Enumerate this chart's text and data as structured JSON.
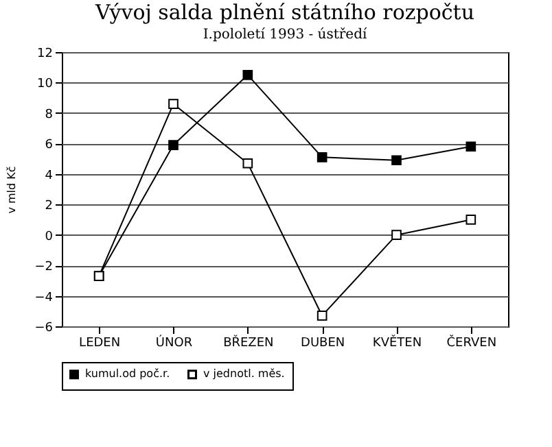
{
  "chart_data": {
    "type": "line",
    "title": "Vývoj salda plnění státního rozpočtu",
    "subtitle": "I.pololetí 1993 - ústředí",
    "ylabel": "v mld Kč",
    "categories": [
      "LEDEN",
      "ÚNOR",
      "BŘEZEN",
      "DUBEN",
      "KVĚTEN",
      "ČERVEN"
    ],
    "series": [
      {
        "name": "kumul.od poč.r.",
        "color": "#000000",
        "marker": "square",
        "values": [
          -2.7,
          5.9,
          10.5,
          5.1,
          4.9,
          5.8
        ]
      },
      {
        "name": "v jednotl. měs.",
        "color": "#000000",
        "marker": "square",
        "values": [
          -2.7,
          8.6,
          4.7,
          -5.3,
          0.0,
          1.0
        ]
      }
    ],
    "ylim": [
      -6,
      12
    ],
    "yticks": [
      -6,
      -4,
      -2,
      0,
      2,
      4,
      6,
      8,
      10,
      12
    ],
    "grid": "y",
    "legend": "bottom",
    "line_style": "solid"
  }
}
